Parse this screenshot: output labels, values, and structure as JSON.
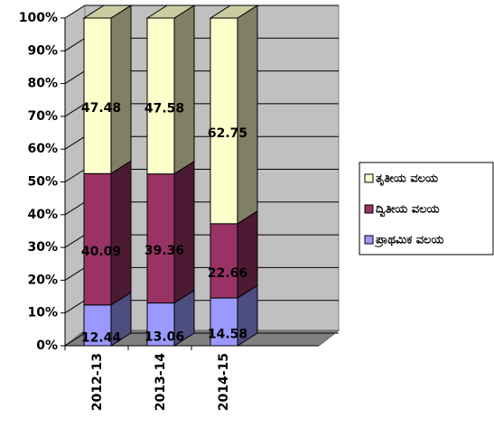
{
  "chart_data": {
    "type": "bar3d-stacked",
    "categories": [
      "2012-13",
      "2013-14",
      "2014-15"
    ],
    "series": [
      {
        "name": "ಪ್ರಾಥಮಿಕ ವಲಯ",
        "color": "#9999ff",
        "values": [
          12.44,
          13.06,
          14.58
        ]
      },
      {
        "name": "ದ್ವಿತೀಯ ವಲಯ",
        "color": "#993366",
        "values": [
          40.09,
          39.36,
          22.66
        ]
      },
      {
        "name": "ತೃತೀಯ ವಲಯ",
        "color": "#ffffcc",
        "values": [
          47.48,
          47.58,
          62.75
        ]
      }
    ],
    "ylim": [
      0,
      100
    ],
    "yticks": [
      {
        "value": 0,
        "label": "0%"
      },
      {
        "value": 10,
        "label": "10%"
      },
      {
        "value": 20,
        "label": "20%"
      },
      {
        "value": 30,
        "label": "30%"
      },
      {
        "value": 40,
        "label": "40%"
      },
      {
        "value": 50,
        "label": "50%"
      },
      {
        "value": 60,
        "label": "60%"
      },
      {
        "value": 70,
        "label": "70%"
      },
      {
        "value": 80,
        "label": "80%"
      },
      {
        "value": 90,
        "label": "90%"
      },
      {
        "value": 100,
        "label": "100%"
      }
    ],
    "grid": true,
    "legend": "right"
  }
}
